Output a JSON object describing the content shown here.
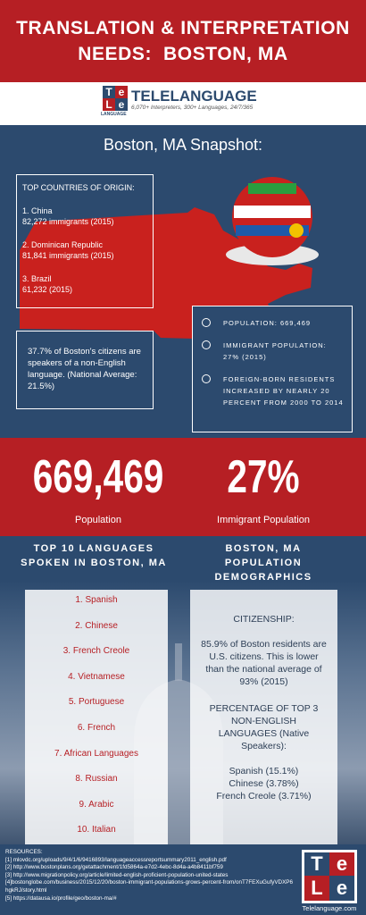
{
  "header": {
    "title": [
      "TRANSLATION & INTERPRETATION",
      "NEEDS:  BOSTON, MA"
    ]
  },
  "brand": {
    "logo": [
      "T",
      "e",
      "L",
      "e"
    ],
    "logo_caption": "LANGUAGE",
    "name": "TELELANGUAGE",
    "tagline": "6,070+ Interpreters, 300+ Languages, 24/7/365"
  },
  "snapshot": {
    "title": "Boston, MA Snapshot:",
    "countries": {
      "heading": "TOP COUNTRIES OF ORIGIN:",
      "items": [
        {
          "name": "1. China",
          "detail": "82,272 immigrants (2015)"
        },
        {
          "name": "2. Dominican Republic",
          "detail": "81,841 immigrants (2015)"
        },
        {
          "name": "3. Brazil",
          "detail": "61,232 (2015)"
        }
      ]
    },
    "language_note": "37.7% of Boston's citizens are speakers of a non-English language. (National Average: 21.5%)",
    "facts": [
      "POPULATION:  669,469",
      "IMMIGRANT POPULATION: 27% (2015)",
      "FOREIGN-BORN RESIDENTS INCREASED BY NEARLY 20 PERCENT FROM 2000 TO 2014"
    ]
  },
  "highlights": [
    {
      "value": "669,469",
      "label": "Population"
    },
    {
      "value": "27%",
      "label": "Immigrant Population"
    }
  ],
  "languages": {
    "heading": "TOP 10 LANGUAGES SPOKEN IN BOSTON, MA",
    "items": [
      "1. Spanish",
      "2. Chinese",
      "3. French Creole",
      "4. Vietnamese",
      "5. Portuguese",
      "6. French",
      "7. African Languages",
      "8. Russian",
      "9. Arabic",
      "10. Italian"
    ]
  },
  "demographics": {
    "heading": "BOSTON, MA POPULATION DEMOGRAPHICS",
    "citizenship_heading": "CITIZENSHIP:",
    "citizenship_text": "85.9% of Boston residents are U.S. citizens. This is lower than the national average of 93% (2015)",
    "languages_heading": "PERCENTAGE OF TOP 3 NON-ENGLISH LANGUAGES (Native Speakers):",
    "languages": [
      "Spanish (15.1%)",
      "Chinese (3.78%)",
      "French Creole (3.71%)"
    ]
  },
  "resources": {
    "heading": "RESOURCES:",
    "items": [
      "[1] mlovdc.org/uploads/9/4/1/6/9416893/languageaccessreportsummary2011_english.pdf",
      "[2] http://www.bostonplans.org/getattachment/1fd5864a-e7d2-4ebc-8d4a-a4b8411bf759",
      "[3] http://www.migrationpolicy.org/article/limited-english-proficient-population-united-states",
      "[4]bostonglobe.com/business/2015/12/20/boston-immigrant-populations-grows-percent-from/onT7FEXuGufyVDXP6hgkRJ/story.html",
      "[5] https://datausa.io/profile/geo/boston-ma/#"
    ]
  },
  "footer": {
    "logo": [
      "T",
      "e",
      "L",
      "e"
    ],
    "site": "Telelanguage.com"
  }
}
